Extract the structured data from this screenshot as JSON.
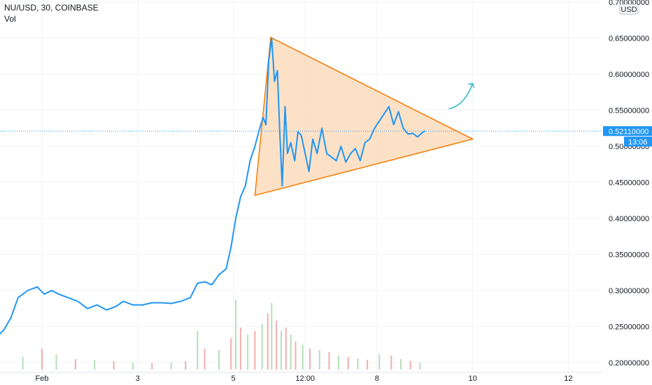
{
  "header": {
    "symbol": "NU/USD, 30, COINBASE",
    "volume_label": "Vol"
  },
  "currency_badge": "USD",
  "price_tag": {
    "price": "0.52110000",
    "countdown": "13:06",
    "color": "#2196f3"
  },
  "colors": {
    "line": "#2196f3",
    "triangle_stroke": "#f57c00",
    "triangle_fill": "#fbd7b4",
    "arrow": "#26b6c6",
    "vol_up": "#a5d6a7",
    "vol_down": "#ef9a9a",
    "grid": "#f0f3fa"
  },
  "chart_data": {
    "type": "line",
    "title": "NU/USD, 30, COINBASE",
    "ylim": [
      0.19,
      0.7
    ],
    "y_ticks": [
      "0.20000000",
      "0.25000000",
      "0.30000000",
      "0.35000000",
      "0.40000000",
      "0.45000000",
      "0.50000000",
      "0.55000000",
      "0.60000000",
      "0.65000000",
      "0.70000000"
    ],
    "x_ticks": [
      "Feb",
      "3",
      "5",
      "12:00",
      "8",
      "10",
      "12"
    ],
    "x_tick_days": [
      1,
      3,
      5,
      6.5,
      8,
      10,
      12
    ],
    "grid": true,
    "series": [
      {
        "x": [
          0.0,
          0.2,
          0.35,
          0.5,
          0.7,
          0.9,
          1.05,
          1.2,
          1.35,
          1.55,
          1.75,
          1.95,
          2.15,
          2.35,
          2.55,
          2.7,
          2.9,
          3.1,
          3.3,
          3.5,
          3.7,
          3.9,
          4.1,
          4.25,
          4.4,
          4.55,
          4.7,
          4.85,
          4.95,
          5.05,
          5.15,
          5.25,
          5.35,
          5.45,
          5.55,
          5.62,
          5.68,
          5.74,
          5.8,
          5.86,
          5.92,
          5.97,
          6.02,
          6.08,
          6.13,
          6.2,
          6.28,
          6.35,
          6.42,
          6.5,
          6.58,
          6.66,
          6.75,
          6.85,
          6.95,
          7.05,
          7.15,
          7.25,
          7.35,
          7.45,
          7.55,
          7.65,
          7.75,
          7.85,
          7.95,
          8.05,
          8.15,
          8.25,
          8.35,
          8.45,
          8.55,
          8.65,
          8.75,
          8.85,
          8.95,
          9.0
        ],
        "values": [
          0.232,
          0.245,
          0.262,
          0.29,
          0.3,
          0.305,
          0.295,
          0.3,
          0.295,
          0.29,
          0.285,
          0.275,
          0.28,
          0.273,
          0.278,
          0.285,
          0.28,
          0.28,
          0.283,
          0.283,
          0.282,
          0.285,
          0.29,
          0.31,
          0.312,
          0.308,
          0.322,
          0.33,
          0.36,
          0.4,
          0.43,
          0.445,
          0.48,
          0.5,
          0.525,
          0.54,
          0.53,
          0.62,
          0.65,
          0.59,
          0.605,
          0.52,
          0.445,
          0.555,
          0.49,
          0.505,
          0.48,
          0.52,
          0.515,
          0.49,
          0.465,
          0.51,
          0.49,
          0.525,
          0.49,
          0.485,
          0.48,
          0.5,
          0.478,
          0.49,
          0.497,
          0.48,
          0.505,
          0.51,
          0.525,
          0.535,
          0.545,
          0.555,
          0.53,
          0.548,
          0.525,
          0.517,
          0.518,
          0.513,
          0.519,
          0.521
        ]
      }
    ],
    "volume": [
      {
        "x": 0.6,
        "v": 0.18
      },
      {
        "x": 1.0,
        "v": 0.3
      },
      {
        "x": 1.3,
        "v": 0.22
      },
      {
        "x": 1.7,
        "v": 0.15
      },
      {
        "x": 2.1,
        "v": 0.14
      },
      {
        "x": 2.5,
        "v": 0.12
      },
      {
        "x": 2.9,
        "v": 0.1
      },
      {
        "x": 3.3,
        "v": 0.09
      },
      {
        "x": 3.7,
        "v": 0.1
      },
      {
        "x": 4.0,
        "v": 0.12
      },
      {
        "x": 4.25,
        "v": 0.55
      },
      {
        "x": 4.4,
        "v": 0.3
      },
      {
        "x": 4.7,
        "v": 0.28
      },
      {
        "x": 4.95,
        "v": 0.45
      },
      {
        "x": 5.05,
        "v": 1.0
      },
      {
        "x": 5.15,
        "v": 0.6
      },
      {
        "x": 5.3,
        "v": 0.5
      },
      {
        "x": 5.45,
        "v": 0.55
      },
      {
        "x": 5.6,
        "v": 0.65
      },
      {
        "x": 5.72,
        "v": 0.8
      },
      {
        "x": 5.8,
        "v": 0.95
      },
      {
        "x": 5.9,
        "v": 0.7
      },
      {
        "x": 6.0,
        "v": 0.55
      },
      {
        "x": 6.1,
        "v": 0.6
      },
      {
        "x": 6.2,
        "v": 0.5
      },
      {
        "x": 6.3,
        "v": 0.4
      },
      {
        "x": 6.45,
        "v": 0.35
      },
      {
        "x": 6.6,
        "v": 0.3
      },
      {
        "x": 6.8,
        "v": 0.28
      },
      {
        "x": 7.0,
        "v": 0.25
      },
      {
        "x": 7.2,
        "v": 0.2
      },
      {
        "x": 7.4,
        "v": 0.18
      },
      {
        "x": 7.6,
        "v": 0.16
      },
      {
        "x": 7.8,
        "v": 0.14
      },
      {
        "x": 8.05,
        "v": 0.22
      },
      {
        "x": 8.3,
        "v": 0.2
      },
      {
        "x": 8.5,
        "v": 0.15
      },
      {
        "x": 8.7,
        "v": 0.12
      },
      {
        "x": 8.9,
        "v": 0.1
      }
    ],
    "triangle": {
      "x": [
        5.45,
        5.78,
        10.0
      ],
      "y": [
        0.432,
        0.651,
        0.51
      ]
    },
    "arrow": {
      "x": [
        9.5,
        10.0
      ],
      "y": [
        0.552,
        0.587
      ]
    }
  }
}
